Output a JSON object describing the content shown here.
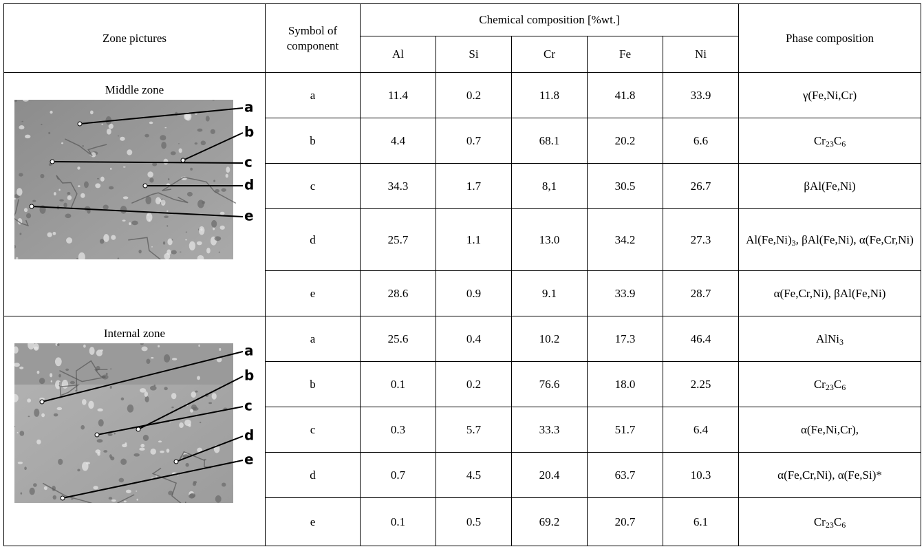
{
  "table": {
    "headers": {
      "zone_pictures": "Zone pictures",
      "symbol": "Symbol of component",
      "chemical": "Chemical composition [%wt.]",
      "elements": [
        "Al",
        "Si",
        "Cr",
        "Fe",
        "Ni"
      ],
      "phase": "Phase composition"
    },
    "sections": [
      {
        "zone": "Middle zone",
        "picture_labels": [
          "a",
          "b",
          "c",
          "d",
          "e"
        ],
        "rows": [
          {
            "symbol": "a",
            "values": [
              "11.4",
              "0.2",
              "11.8",
              "41.8",
              "33.9"
            ],
            "phase": [
              "γ(Fe,Ni,Cr)"
            ]
          },
          {
            "symbol": "b",
            "values": [
              "4.4",
              "0.7",
              "68.1",
              "20.2",
              "6.6"
            ],
            "phase": [
              "Cr",
              {
                "sub": "23"
              },
              "C",
              {
                "sub": "6"
              }
            ]
          },
          {
            "symbol": "c",
            "values": [
              "34.3",
              "1.7",
              "8,1",
              "30.5",
              "26.7"
            ],
            "phase": [
              "βAl(Fe,Ni)"
            ]
          },
          {
            "symbol": "d",
            "values": [
              "25.7",
              "1.1",
              "13.0",
              "34.2",
              "27.3"
            ],
            "phase": [
              "Al(Fe,Ni)",
              {
                "sub": "3"
              },
              ", βAl(Fe,Ni), α(Fe,Cr,Ni)"
            ]
          },
          {
            "symbol": "e",
            "values": [
              "28.6",
              "0.9",
              "9.1",
              "33.9",
              "28.7"
            ],
            "phase": [
              "α(Fe,Cr,Ni), βAl(Fe,Ni)"
            ]
          }
        ]
      },
      {
        "zone": "Internal zone",
        "picture_labels": [
          "a",
          "b",
          "c",
          "d",
          "e"
        ],
        "rows": [
          {
            "symbol": "a",
            "values": [
              "25.6",
              "0.4",
              "10.2",
              "17.3",
              "46.4"
            ],
            "phase": [
              "AlNi",
              {
                "sub": "3"
              }
            ]
          },
          {
            "symbol": "b",
            "values": [
              "0.1",
              "0.2",
              "76.6",
              "18.0",
              "2.25"
            ],
            "phase": [
              "Cr",
              {
                "sub": "23"
              },
              "C",
              {
                "sub": "6"
              }
            ]
          },
          {
            "symbol": "c",
            "values": [
              "0.3",
              "5.7",
              "33.3",
              "51.7",
              "6.4"
            ],
            "phase": [
              "α(Fe,Ni,Cr),"
            ]
          },
          {
            "symbol": "d",
            "values": [
              "0.7",
              "4.5",
              "20.4",
              "63.7",
              "10.3"
            ],
            "phase": [
              "α(Fe,Cr,Ni), α(Fe,Si)*"
            ]
          },
          {
            "symbol": "e",
            "values": [
              "0.1",
              "0.5",
              "69.2",
              "20.7",
              "6.1"
            ],
            "phase": [
              "Cr",
              {
                "sub": "23"
              },
              "C",
              {
                "sub": "6"
              }
            ]
          }
        ]
      }
    ]
  }
}
